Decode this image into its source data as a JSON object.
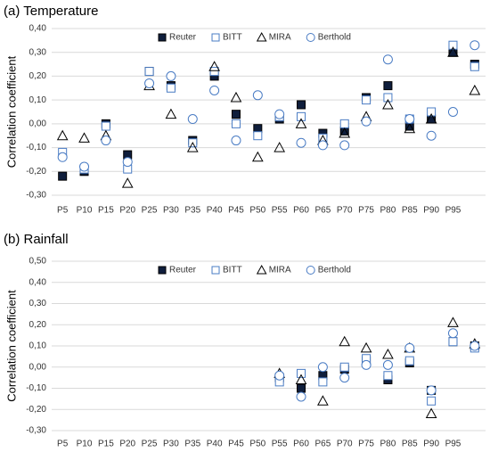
{
  "chart_data": [
    {
      "type": "scatter",
      "title": "(a) Temperature",
      "y_label": "Correlation coefficient",
      "categories": [
        "P5",
        "P10",
        "P15",
        "P20",
        "P25",
        "P30",
        "P35",
        "P40",
        "P45",
        "P50",
        "P55",
        "P60",
        "P65",
        "P70",
        "P75",
        "P80",
        "P85",
        "P90",
        "P95",
        null
      ],
      "ylim": [
        -0.3,
        0.4
      ],
      "yticks": [
        {
          "value": -0.3,
          "label": "-0,30"
        },
        {
          "value": -0.2,
          "label": "-0,20"
        },
        {
          "value": -0.1,
          "label": "-0,10"
        },
        {
          "value": 0,
          "label": "0,00"
        },
        {
          "value": 0.1,
          "label": "0,10"
        },
        {
          "value": 0.2,
          "label": "0,20"
        },
        {
          "value": 0.3,
          "label": "0,30"
        },
        {
          "value": 0.4,
          "label": "0,40"
        }
      ],
      "grid": true,
      "legend": "top",
      "series": [
        {
          "name": "Reuter",
          "color": "#0f1e3c",
          "marker": "square-filled",
          "values": [
            -0.22,
            -0.2,
            0.0,
            -0.13,
            0.22,
            0.16,
            -0.07,
            0.2,
            0.04,
            -0.02,
            0.02,
            0.08,
            -0.04,
            -0.03,
            0.11,
            0.16,
            -0.01,
            0.02,
            0.3,
            0.25
          ]
        },
        {
          "name": "BITT",
          "color": "#4a7cc4",
          "marker": "square-open",
          "values": [
            -0.12,
            -0.19,
            -0.01,
            -0.19,
            0.22,
            0.15,
            -0.08,
            0.22,
            0.0,
            -0.05,
            0.03,
            0.03,
            -0.06,
            0.0,
            0.1,
            0.11,
            0.02,
            0.05,
            0.33,
            0.24
          ]
        },
        {
          "name": "MIRA",
          "color": "#000000",
          "marker": "triangle-open",
          "values": [
            -0.05,
            -0.06,
            -0.05,
            -0.25,
            0.16,
            0.04,
            -0.1,
            0.24,
            0.11,
            -0.14,
            -0.1,
            0.0,
            -0.07,
            -0.04,
            0.03,
            0.08,
            -0.02,
            0.02,
            0.3,
            0.14
          ]
        },
        {
          "name": "Berthold",
          "color": "#4a7cc4",
          "marker": "circle-open",
          "values": [
            -0.14,
            -0.18,
            -0.07,
            -0.16,
            0.17,
            0.2,
            0.02,
            0.14,
            -0.07,
            0.12,
            0.04,
            -0.08,
            -0.09,
            -0.09,
            0.01,
            0.27,
            0.02,
            -0.05,
            0.05,
            0.33
          ]
        }
      ]
    },
    {
      "type": "scatter",
      "title": "(b) Rainfall",
      "y_label": "Correlation coefficient",
      "categories": [
        "P5",
        "P10",
        "P15",
        "P20",
        "P25",
        "P30",
        "P35",
        "P40",
        "P45",
        "P50",
        "P55",
        "P60",
        "P65",
        "P70",
        "P75",
        "P80",
        "P85",
        "P90",
        "P95",
        null
      ],
      "ylim": [
        -0.3,
        0.5
      ],
      "yticks": [
        {
          "value": -0.3,
          "label": "-0,30"
        },
        {
          "value": -0.2,
          "label": "-0,20"
        },
        {
          "value": -0.1,
          "label": "-0,10"
        },
        {
          "value": 0,
          "label": "0,00"
        },
        {
          "value": 0.1,
          "label": "0,10"
        },
        {
          "value": 0.2,
          "label": "0,20"
        },
        {
          "value": 0.3,
          "label": "0,30"
        },
        {
          "value": 0.4,
          "label": "0,40"
        },
        {
          "value": 0.5,
          "label": "0,50"
        }
      ],
      "grid": true,
      "legend": "top",
      "series": [
        {
          "name": "Reuter",
          "color": "#0f1e3c",
          "marker": "square-filled",
          "values": [
            null,
            null,
            null,
            null,
            null,
            null,
            null,
            null,
            null,
            null,
            -0.05,
            -0.1,
            -0.04,
            -0.01,
            0.03,
            -0.06,
            0.02,
            -0.11,
            0.12,
            0.1
          ]
        },
        {
          "name": "BITT",
          "color": "#4a7cc4",
          "marker": "square-open",
          "values": [
            null,
            null,
            null,
            null,
            null,
            null,
            null,
            null,
            null,
            null,
            -0.07,
            -0.03,
            -0.07,
            0.0,
            0.04,
            -0.04,
            0.03,
            -0.16,
            0.12,
            0.09
          ]
        },
        {
          "name": "MIRA",
          "color": "#000000",
          "marker": "triangle-open",
          "values": [
            null,
            null,
            null,
            null,
            null,
            null,
            null,
            null,
            null,
            null,
            -0.03,
            -0.06,
            -0.16,
            0.12,
            0.09,
            0.06,
            0.09,
            -0.22,
            0.21,
            0.11
          ]
        },
        {
          "name": "Berthold",
          "color": "#4a7cc4",
          "marker": "circle-open",
          "values": [
            null,
            null,
            null,
            null,
            null,
            null,
            null,
            null,
            null,
            null,
            -0.04,
            -0.14,
            0.0,
            -0.05,
            0.01,
            0.01,
            0.09,
            -0.11,
            0.16,
            0.1
          ]
        }
      ]
    }
  ]
}
